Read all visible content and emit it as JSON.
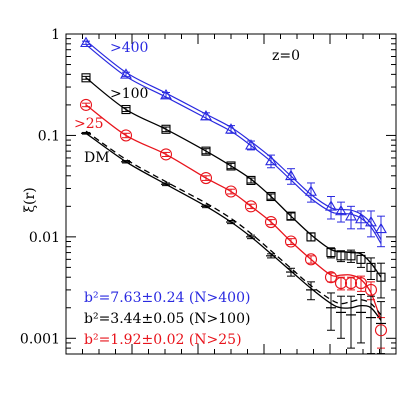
{
  "chart_data": {
    "type": "line",
    "title": "",
    "xlabel": "",
    "ylabel": "ξ(r)",
    "yscale": "log",
    "ylim": [
      0.0007,
      1.0
    ],
    "xlim": [
      0.0,
      1.0
    ],
    "y_tick_labels": [
      {
        "value": 1,
        "label": "1"
      },
      {
        "value": 0.1,
        "label": "0.1"
      },
      {
        "value": 0.01,
        "label": "0.01"
      },
      {
        "value": 0.001,
        "label": "0.001"
      }
    ],
    "x_major_ticks": [
      0.2,
      0.4,
      0.6,
      0.8
    ],
    "grid": false,
    "annotations": {
      "redshift": "z=0",
      "bias_blue": "b²=7.63±0.24 (N>400)",
      "bias_black": "b²=3.44±0.05 (N>100)",
      "bias_red": "b²=1.92±0.02 (N>25)"
    },
    "colors": {
      "blue": "#2a2ae0",
      "black": "#000000",
      "red": "#e8141c"
    },
    "series": [
      {
        "name": ">400",
        "color": "#2a2ae0",
        "marker": "triangle",
        "x": [
          0.0606,
          0.1818,
          0.303,
          0.4242,
          0.5,
          0.5606,
          0.6212,
          0.6818,
          0.7424,
          0.803,
          0.8333,
          0.8636,
          0.8939,
          0.9242,
          0.9545
        ],
        "y": [
          0.82,
          0.4,
          0.25,
          0.155,
          0.115,
          0.08,
          0.056,
          0.04,
          0.028,
          0.02,
          0.018,
          0.016,
          0.015,
          0.014,
          0.012
        ],
        "err": [
          0.03,
          0.02,
          0.015,
          0.012,
          0.01,
          0.008,
          0.008,
          0.007,
          0.006,
          0.005,
          0.004,
          0.004,
          0.003,
          0.004,
          0.004
        ],
        "fit": {
          "x": [
            0.0606,
            0.1818,
            0.303,
            0.4242,
            0.5,
            0.5606,
            0.6212,
            0.6818,
            0.7424,
            0.803,
            0.8333,
            0.8636,
            0.8939,
            0.9242,
            0.9545
          ],
          "y": [
            0.82,
            0.4,
            0.25,
            0.155,
            0.115,
            0.083,
            0.058,
            0.038,
            0.025,
            0.0185,
            0.0178,
            0.0175,
            0.016,
            0.013,
            0.009
          ]
        }
      },
      {
        "name": ">100",
        "color": "#000000",
        "marker": "square",
        "x": [
          0.0606,
          0.1818,
          0.303,
          0.4242,
          0.5,
          0.5606,
          0.6212,
          0.6818,
          0.7424,
          0.803,
          0.8333,
          0.8636,
          0.8939,
          0.9242,
          0.9545
        ],
        "y": [
          0.37,
          0.18,
          0.115,
          0.07,
          0.05,
          0.036,
          0.025,
          0.016,
          0.01,
          0.007,
          0.0065,
          0.0065,
          0.006,
          0.005,
          0.004
        ],
        "err": [
          0.012,
          0.008,
          0.006,
          0.004,
          0.003,
          0.002,
          0.0015,
          0.0012,
          0.0009,
          0.0008,
          0.0008,
          0.0009,
          0.001,
          0.0012,
          0.0015
        ],
        "fit": {
          "x": [
            0.0606,
            0.1818,
            0.303,
            0.4242,
            0.5,
            0.5606,
            0.6212,
            0.6818,
            0.7424,
            0.803,
            0.8333,
            0.8636,
            0.8939,
            0.9242,
            0.9545
          ],
          "y": [
            0.37,
            0.18,
            0.115,
            0.07,
            0.05,
            0.037,
            0.025,
            0.016,
            0.0105,
            0.0075,
            0.0072,
            0.007,
            0.0068,
            0.0055,
            0.004
          ]
        }
      },
      {
        "name": ">25",
        "color": "#e8141c",
        "marker": "circle",
        "x": [
          0.0606,
          0.1818,
          0.303,
          0.4242,
          0.5,
          0.5606,
          0.6212,
          0.6818,
          0.7424,
          0.803,
          0.8333,
          0.8636,
          0.8939,
          0.9242,
          0.9545
        ],
        "y": [
          0.2,
          0.1,
          0.065,
          0.038,
          0.028,
          0.02,
          0.014,
          0.009,
          0.006,
          0.004,
          0.0035,
          0.0035,
          0.0035,
          0.003,
          0.0012
        ],
        "err": [
          0.008,
          0.005,
          0.003,
          0.002,
          0.0015,
          0.001,
          0.0008,
          0.0006,
          0.0005,
          0.0004,
          0.0005,
          0.0005,
          0.0006,
          0.0006,
          0.0004
        ],
        "fit": {
          "x": [
            0.0606,
            0.1818,
            0.303,
            0.4242,
            0.5,
            0.5606,
            0.6212,
            0.6818,
            0.7424,
            0.803,
            0.8333,
            0.8636,
            0.8939,
            0.9242,
            0.9545
          ],
          "y": [
            0.2,
            0.1,
            0.065,
            0.038,
            0.028,
            0.02,
            0.014,
            0.009,
            0.006,
            0.0042,
            0.0042,
            0.0042,
            0.0038,
            0.0028,
            0.0015
          ]
        }
      },
      {
        "name": "DM",
        "color": "#000000",
        "marker": "tick",
        "x": [
          0.0606,
          0.1818,
          0.303,
          0.4242,
          0.5,
          0.5606,
          0.6212,
          0.6818,
          0.7424,
          0.803,
          0.8333,
          0.8636,
          0.8939,
          0.9242,
          0.9545
        ],
        "y": [
          0.105,
          0.055,
          0.033,
          0.02,
          0.014,
          0.01,
          0.0065,
          0.0045,
          0.003,
          0.002,
          0.0018,
          0.0017,
          0.0018,
          0.0016,
          0.0014
        ],
        "err": [
          0.002,
          0.0015,
          0.001,
          0.0006,
          0.0005,
          0.0004,
          0.0003,
          0.0004,
          0.0006,
          0.0008,
          0.0008,
          0.0009,
          0.0009,
          0.001,
          0.0009
        ],
        "fit": {
          "x": [
            0.0606,
            0.1818,
            0.303,
            0.4242,
            0.5,
            0.5606,
            0.6212,
            0.6818,
            0.7424,
            0.803,
            0.8333,
            0.8636,
            0.8939,
            0.9242,
            0.9545
          ],
          "y": [
            0.105,
            0.055,
            0.033,
            0.02,
            0.014,
            0.01,
            0.0068,
            0.0046,
            0.0031,
            0.0022,
            0.002,
            0.002,
            0.0021,
            0.002,
            0.0015
          ]
        },
        "fit_dashed": {
          "x": [
            0.0606,
            0.1818,
            0.303,
            0.4242,
            0.5,
            0.5606,
            0.6212,
            0.6818,
            0.7424,
            0.803,
            0.8333,
            0.8636,
            0.8939,
            0.9242,
            0.9545
          ],
          "y": [
            0.11,
            0.058,
            0.035,
            0.0215,
            0.0152,
            0.0108,
            0.0073,
            0.0049,
            0.0033,
            0.0024,
            0.0022,
            0.0023,
            0.0024,
            0.0022,
            0.0017
          ]
        }
      }
    ]
  }
}
